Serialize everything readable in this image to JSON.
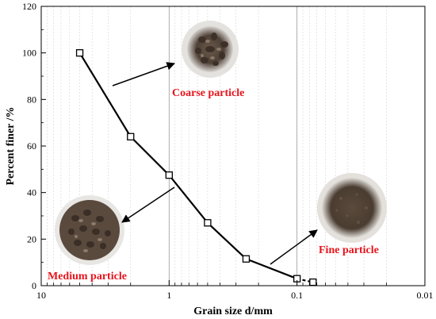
{
  "chart_data": {
    "type": "line",
    "xlabel": "Grain size d/mm",
    "ylabel": "Percent finer /%",
    "xscale": "log",
    "xaxis_reversed": true,
    "xlim": [
      10,
      0.01
    ],
    "ylim": [
      0,
      120
    ],
    "x_ticks": [
      {
        "value": 10,
        "label": "10"
      },
      {
        "value": 1,
        "label": "1"
      },
      {
        "value": 0.1,
        "label": "0.1"
      },
      {
        "value": 0.01,
        "label": "0.01"
      }
    ],
    "y_ticks": [
      0,
      20,
      40,
      60,
      80,
      100,
      120
    ],
    "grid": true,
    "series": [
      {
        "marker": "open-square",
        "color": "#000000",
        "points": [
          {
            "x": 5,
            "y": 100
          },
          {
            "x": 2,
            "y": 64
          },
          {
            "x": 1,
            "y": 47.5
          },
          {
            "x": 0.5,
            "y": 27
          },
          {
            "x": 0.25,
            "y": 11.5
          },
          {
            "x": 0.1,
            "y": 3
          },
          {
            "x": 0.075,
            "y": 1.5
          }
        ]
      }
    ],
    "annotations": [
      {
        "text": "Coarse particle",
        "color": "#e8141c"
      },
      {
        "text": "Medium particle",
        "color": "#e8141c"
      },
      {
        "text": "Fine particle",
        "color": "#e8141c"
      }
    ]
  }
}
